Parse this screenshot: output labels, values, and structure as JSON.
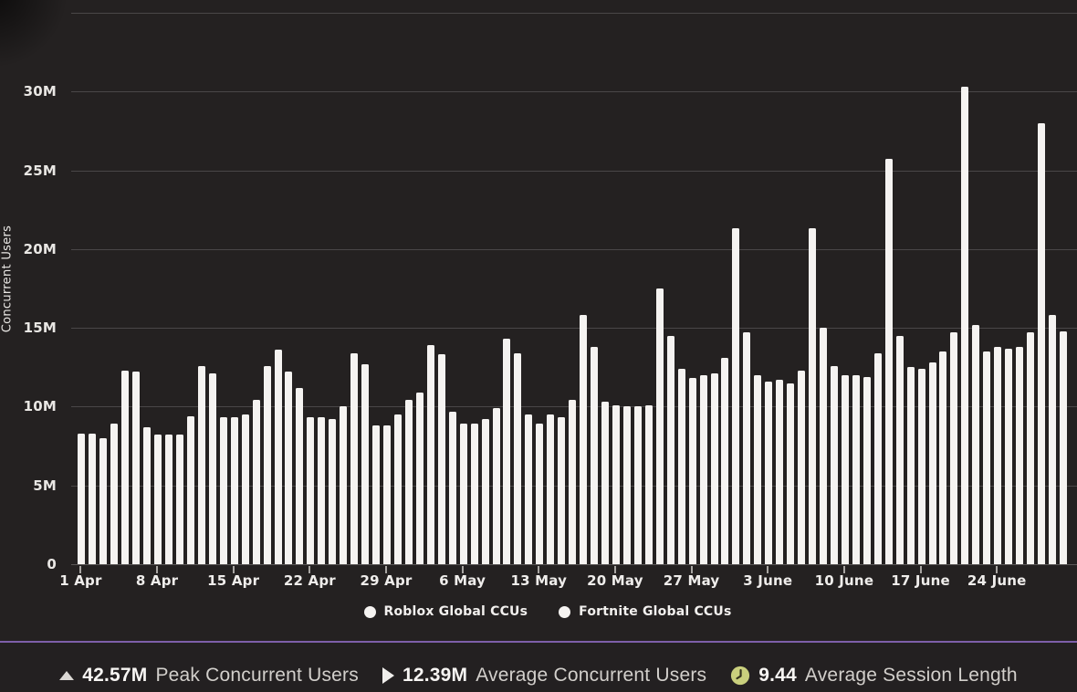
{
  "stats_bar": {
    "items": [
      {
        "icon": "triangle-up",
        "icon_color": "#dbd8d4",
        "value": "42.57M",
        "label": "Peak Concurrent Users"
      },
      {
        "icon": "play",
        "icon_color": "#f0eeec",
        "value": "12.39M",
        "label": "Average Concurrent Users"
      },
      {
        "icon": "clock",
        "icon_color": "#c9cf7d",
        "value": "9.44",
        "label": "Average Session Length"
      }
    ]
  },
  "colors": {
    "background": "#242121",
    "bar": "#f5f3f1",
    "gridline": "#4a4748",
    "divider_purple": "#7d5fa9",
    "clock_icon": "#c9cf7d"
  },
  "chart_data": {
    "type": "bar",
    "title": "",
    "xlabel": "",
    "ylabel": "Concurrent Users",
    "ylim_millions": [
      0,
      35
    ],
    "grid": "horizontal",
    "legend_position": "bottom-center",
    "y_tick_labels": [
      "0",
      "5M",
      "10M",
      "15M",
      "20M",
      "25M",
      "30M"
    ],
    "x_tick_labels": [
      "1 Apr",
      "8 Apr",
      "15 Apr",
      "22 Apr",
      "29 Apr",
      "6 May",
      "13 May",
      "20 May",
      "27 May",
      "3 June",
      "10 June",
      "17 June",
      "24 June"
    ],
    "x": [
      "1 Apr",
      "2 Apr",
      "3 Apr",
      "4 Apr",
      "5 Apr",
      "6 Apr",
      "7 Apr",
      "8 Apr",
      "9 Apr",
      "10 Apr",
      "11 Apr",
      "12 Apr",
      "13 Apr",
      "14 Apr",
      "15 Apr",
      "16 Apr",
      "17 Apr",
      "18 Apr",
      "19 Apr",
      "20 Apr",
      "21 Apr",
      "22 Apr",
      "23 Apr",
      "24 Apr",
      "25 Apr",
      "26 Apr",
      "27 Apr",
      "28 Apr",
      "29 Apr",
      "30 Apr",
      "1 May",
      "2 May",
      "3 May",
      "4 May",
      "5 May",
      "6 May",
      "7 May",
      "8 May",
      "9 May",
      "10 May",
      "11 May",
      "12 May",
      "13 May",
      "14 May",
      "15 May",
      "16 May",
      "17 May",
      "18 May",
      "19 May",
      "20 May",
      "21 May",
      "22 May",
      "23 May",
      "24 May",
      "25 May",
      "26 May",
      "27 May",
      "28 May",
      "29 May",
      "30 May",
      "31 May",
      "1 June",
      "2 June",
      "3 June",
      "4 June",
      "5 June",
      "6 June",
      "7 June",
      "8 June",
      "9 June",
      "10 June",
      "11 June",
      "12 June",
      "13 June",
      "14 June",
      "15 June",
      "16 June",
      "17 June",
      "18 June",
      "19 June",
      "20 June",
      "21 June",
      "22 June",
      "23 June",
      "24 June",
      "25 June",
      "26 June",
      "27 June",
      "28 June",
      "29 June",
      "30 June"
    ],
    "series": [
      {
        "name": "Roblox Global CCUs",
        "color": "#f5f3f1",
        "values_millions": [
          8.3,
          8.3,
          8.0,
          8.9,
          12.3,
          12.2,
          8.7,
          8.2,
          8.2,
          8.2,
          9.4,
          12.6,
          12.1,
          9.3,
          9.3,
          9.5,
          10.4,
          12.6,
          13.6,
          12.2,
          11.2,
          9.3,
          9.3,
          9.2,
          10.0,
          13.4,
          12.7,
          8.8,
          8.8,
          9.5,
          10.4,
          10.9,
          13.9,
          13.3,
          9.7,
          8.9,
          8.9,
          9.2,
          9.9,
          14.3,
          13.4,
          9.5,
          8.9,
          9.5,
          9.3,
          10.4,
          15.8,
          13.8,
          10.3,
          10.1,
          10.0,
          10.0,
          10.1,
          17.5,
          14.5,
          12.4,
          11.8,
          12.0,
          12.1,
          13.1,
          21.3,
          14.7,
          12.0,
          11.6,
          11.7,
          11.5,
          12.3,
          21.3,
          15.0,
          12.6,
          12.0,
          12.0,
          11.9,
          13.4,
          25.7,
          14.5,
          12.5,
          12.4,
          12.8,
          13.5,
          14.7,
          30.3,
          15.2,
          13.5,
          13.8,
          13.7,
          13.8,
          14.7,
          28.0,
          15.8,
          14.8
        ]
      },
      {
        "name": "Fortnite Global CCUs",
        "color": "#f5f3f1",
        "values_millions": [],
        "visible_bars": false
      }
    ]
  }
}
